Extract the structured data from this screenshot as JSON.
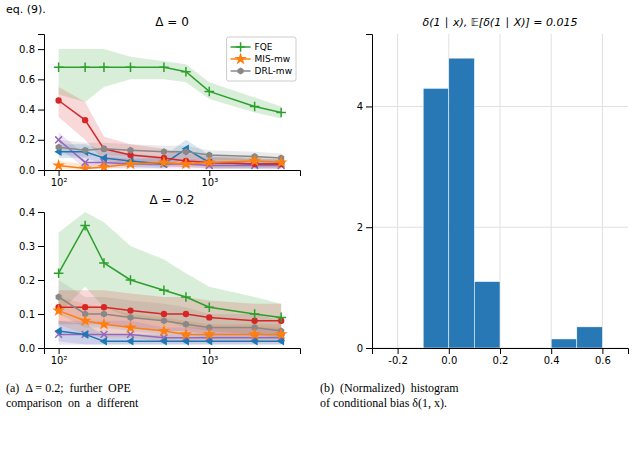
{
  "chart_data": [
    {
      "type": "line",
      "title": "Δ = 0",
      "x": [
        100,
        150,
        200,
        300,
        500,
        700,
        1000,
        2000,
        3000
      ],
      "log": "x",
      "xlim": [
        80,
        4000
      ],
      "xticks": [
        {
          "value": 100,
          "label": "10²"
        },
        {
          "value": 1000,
          "label": "10³"
        }
      ],
      "ylim": [
        0,
        0.9
      ],
      "yticks": [
        {
          "value": 0,
          "label": "0.0"
        },
        0.2,
        0.4,
        0.6,
        0.8
      ],
      "grid": false,
      "legend": "upper right",
      "annotations": [
        "eq. (9)."
      ],
      "series": [
        {
          "name": "FQE",
          "color": "#2ca02c",
          "marker": "plus",
          "values": [
            0.68,
            0.68,
            0.68,
            0.68,
            0.68,
            0.65,
            0.52,
            0.42,
            0.38
          ],
          "lo": [
            0.5,
            0.45,
            0.55,
            0.6,
            0.6,
            0.58,
            0.47,
            0.38,
            0.34
          ],
          "hi": [
            0.8,
            0.8,
            0.8,
            0.75,
            0.72,
            0.7,
            0.58,
            0.48,
            0.42
          ]
        },
        {
          "name": "MIS-mw",
          "color": "#ff7f0e",
          "marker": "star",
          "values": [
            0.03,
            0.01,
            0.02,
            0.04,
            0.05,
            0.04,
            0.05,
            0.06,
            0.05
          ],
          "lo": [
            0.01,
            0.0,
            0.01,
            0.02,
            0.03,
            0.02,
            0.03,
            0.04,
            0.03
          ],
          "hi": [
            0.06,
            0.04,
            0.05,
            0.07,
            0.08,
            0.07,
            0.08,
            0.09,
            0.08
          ]
        },
        {
          "name": "DRL-mw",
          "color": "#888888",
          "marker": "hexagon",
          "values": [
            0.15,
            0.13,
            0.14,
            0.13,
            0.12,
            0.12,
            0.1,
            0.09,
            0.08
          ],
          "lo": [
            0.1,
            0.09,
            0.1,
            0.09,
            0.08,
            0.08,
            0.07,
            0.06,
            0.05
          ],
          "hi": [
            0.2,
            0.18,
            0.18,
            0.17,
            0.16,
            0.16,
            0.13,
            0.12,
            0.11
          ]
        },
        {
          "color": "#d62728",
          "marker": "circle",
          "values": [
            0.46,
            0.33,
            0.14,
            0.1,
            0.08,
            0.06,
            0.05,
            0.04,
            0.04
          ],
          "lo": [
            0.35,
            0.2,
            0.06,
            0.04,
            0.02,
            0.02,
            0.01,
            0.01,
            0.01
          ],
          "hi": [
            0.55,
            0.45,
            0.22,
            0.17,
            0.14,
            0.11,
            0.09,
            0.07,
            0.07
          ]
        },
        {
          "color": "#1f77b4",
          "marker": "triangle-left",
          "values": [
            0.12,
            0.12,
            0.08,
            0.06,
            0.04,
            0.14,
            0.05,
            0.04,
            0.04
          ],
          "lo": [
            0.08,
            0.08,
            0.04,
            0.02,
            0.01,
            0.08,
            0.01,
            0.01,
            0.01
          ],
          "hi": [
            0.17,
            0.17,
            0.13,
            0.11,
            0.09,
            0.2,
            0.1,
            0.08,
            0.07
          ]
        },
        {
          "color": "#9467bd",
          "marker": "x",
          "values": [
            0.2,
            0.05,
            0.05,
            0.04,
            0.04,
            0.04,
            0.03,
            0.03,
            0.03
          ],
          "lo": [
            0.15,
            0.01,
            0.01,
            0.01,
            0.01,
            0.01,
            0.01,
            0.01,
            0.01
          ],
          "hi": [
            0.25,
            0.1,
            0.09,
            0.08,
            0.08,
            0.08,
            0.06,
            0.05,
            0.05
          ]
        }
      ]
    },
    {
      "type": "line",
      "title": "Δ = 0.2",
      "x": [
        100,
        150,
        200,
        300,
        500,
        700,
        1000,
        2000,
        3000
      ],
      "log": "x",
      "xlim": [
        80,
        4000
      ],
      "xticks": [
        {
          "value": 100,
          "label": "10²"
        },
        {
          "value": 1000,
          "label": "10³"
        }
      ],
      "ylim": [
        0,
        0.4
      ],
      "yticks": [
        {
          "value": 0,
          "label": "0.0"
        },
        0.1,
        0.2,
        0.3,
        0.4
      ],
      "grid": false,
      "annotations": [
        "(a)  Δ = 0.2;  further  OPE\ncomparison  on  a  different"
      ],
      "series": [
        {
          "color": "#2ca02c",
          "marker": "plus",
          "values": [
            0.22,
            0.36,
            0.25,
            0.2,
            0.17,
            0.15,
            0.12,
            0.1,
            0.09
          ],
          "lo": [
            0.1,
            0.18,
            0.12,
            0.09,
            0.08,
            0.06,
            0.05,
            0.04,
            0.03
          ],
          "hi": [
            0.34,
            0.4,
            0.37,
            0.3,
            0.26,
            0.22,
            0.18,
            0.15,
            0.13
          ]
        },
        {
          "color": "#ff7f0e",
          "marker": "star",
          "values": [
            0.11,
            0.08,
            0.07,
            0.06,
            0.05,
            0.04,
            0.04,
            0.04,
            0.04
          ],
          "lo": [
            0.07,
            0.04,
            0.03,
            0.03,
            0.02,
            0.02,
            0.02,
            0.02,
            0.02
          ],
          "hi": [
            0.15,
            0.13,
            0.12,
            0.1,
            0.09,
            0.08,
            0.07,
            0.07,
            0.07
          ]
        },
        {
          "color": "#888888",
          "marker": "hexagon",
          "values": [
            0.15,
            0.1,
            0.1,
            0.09,
            0.08,
            0.07,
            0.06,
            0.06,
            0.05
          ],
          "lo": [
            0.1,
            0.06,
            0.06,
            0.05,
            0.04,
            0.04,
            0.03,
            0.03,
            0.03
          ],
          "hi": [
            0.2,
            0.15,
            0.15,
            0.14,
            0.13,
            0.12,
            0.1,
            0.1,
            0.08
          ]
        },
        {
          "color": "#d62728",
          "marker": "circle",
          "values": [
            0.12,
            0.12,
            0.12,
            0.11,
            0.1,
            0.1,
            0.09,
            0.08,
            0.08
          ],
          "lo": [
            0.07,
            0.07,
            0.07,
            0.06,
            0.05,
            0.05,
            0.04,
            0.04,
            0.04
          ],
          "hi": [
            0.17,
            0.17,
            0.17,
            0.16,
            0.15,
            0.15,
            0.14,
            0.13,
            0.13
          ]
        },
        {
          "color": "#1f77b4",
          "marker": "triangle-left",
          "values": [
            0.05,
            0.04,
            0.02,
            0.02,
            0.02,
            0.02,
            0.02,
            0.02,
            0.02
          ],
          "lo": [
            0.02,
            0.01,
            0.01,
            0.01,
            0.01,
            0.01,
            0.01,
            0.01,
            0.01
          ],
          "hi": [
            0.08,
            0.07,
            0.04,
            0.04,
            0.04,
            0.04,
            0.04,
            0.04,
            0.04
          ]
        },
        {
          "color": "#9467bd",
          "marker": "x",
          "values": [
            0.04,
            0.04,
            0.04,
            0.04,
            0.03,
            0.03,
            0.03,
            0.03,
            0.03
          ],
          "lo": [
            0.01,
            0.01,
            0.01,
            0.01,
            0.01,
            0.01,
            0.01,
            0.01,
            0.01
          ],
          "hi": [
            0.08,
            0.08,
            0.08,
            0.08,
            0.06,
            0.06,
            0.06,
            0.06,
            0.06
          ]
        }
      ]
    },
    {
      "type": "histogram",
      "title": "δ(1 ∣ x), 𝔼[δ(1 ∣ X)] = 0.015",
      "bins": [
        -0.3,
        -0.2,
        -0.1,
        0.0,
        0.1,
        0.2,
        0.3,
        0.4,
        0.5,
        0.6,
        0.7
      ],
      "counts": [
        0.0,
        0.0,
        4.3,
        4.8,
        1.1,
        0.0,
        0.0,
        0.15,
        0.35,
        0.0
      ],
      "color": "#2878b5",
      "xlim": [
        -0.3,
        0.7
      ],
      "xticks": [
        -0.2,
        {
          "value": 0,
          "label": "0.0"
        },
        0.2,
        0.4,
        0.6
      ],
      "ylim": [
        0,
        5.2
      ],
      "yticks": [
        0,
        2,
        4
      ],
      "grid": true,
      "annotations": [
        "(b)  (Normalized)  histogram\nof conditional bias δ(1, x)."
      ]
    }
  ]
}
